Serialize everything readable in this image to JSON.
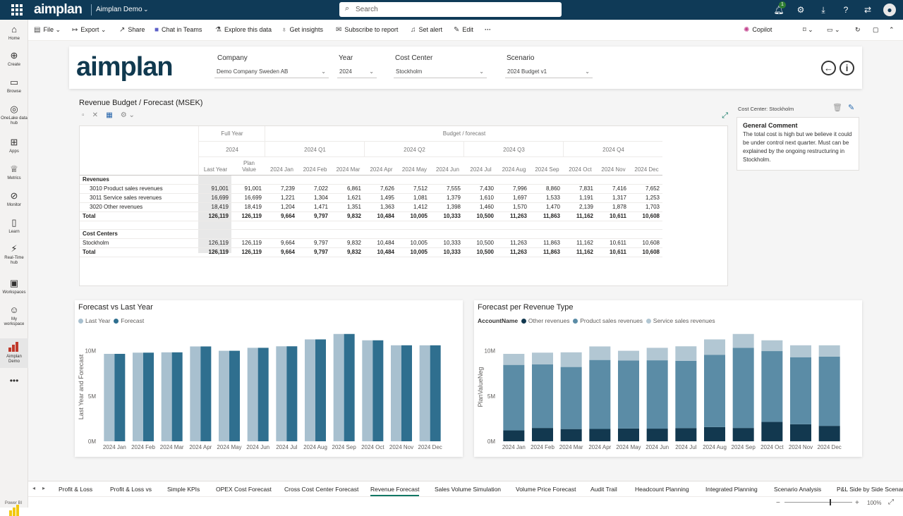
{
  "topbar": {
    "logo": "aimplan",
    "workspace": "Aimplan Demo",
    "search_placeholder": "Search",
    "notification_count": "1"
  },
  "leftnav": [
    {
      "label": "Home",
      "icon": "home-icon"
    },
    {
      "label": "Create",
      "icon": "plus-icon"
    },
    {
      "label": "Browse",
      "icon": "folder-icon"
    },
    {
      "label": "OneLake data hub",
      "icon": "onelake-icon"
    },
    {
      "label": "Apps",
      "icon": "apps-icon"
    },
    {
      "label": "Metrics",
      "icon": "trophy-icon"
    },
    {
      "label": "Monitor",
      "icon": "monitor-icon"
    },
    {
      "label": "Learn",
      "icon": "book-icon"
    },
    {
      "label": "Real-Time hub",
      "icon": "realtime-icon"
    },
    {
      "label": "Workspaces",
      "icon": "workspaces-icon"
    },
    {
      "label": "My workspace",
      "icon": "person-icon"
    },
    {
      "label": "Aimplan Demo",
      "icon": "aimplan-icon"
    }
  ],
  "actionbar": {
    "file": "File",
    "export": "Export",
    "share": "Share",
    "chat": "Chat in Teams",
    "explore": "Explore this data",
    "insights": "Get insights",
    "subscribe": "Subscribe to report",
    "alert": "Set alert",
    "edit": "Edit",
    "copilot": "Copilot"
  },
  "filters": {
    "company": {
      "label": "Company",
      "value": "Demo Company Sweden AB"
    },
    "year": {
      "label": "Year",
      "value": "2024"
    },
    "cost_center": {
      "label": "Cost Center",
      "value": "Stockholm"
    },
    "scenario": {
      "label": "Scenario",
      "value": "2024 Budget v1"
    }
  },
  "matrix": {
    "title": "Revenue Budget / Forecast (MSEK)",
    "group_full_year": "Full Year",
    "group_budget": "Budget / forecast",
    "year": "2024",
    "quarters": [
      "2024 Q1",
      "2024 Q2",
      "2024 Q3",
      "2024 Q4"
    ],
    "col_last_year": "Last Year",
    "col_plan_value": "Plan Value",
    "months": [
      "2024 Jan",
      "2024 Feb",
      "2024 Mar",
      "2024 Apr",
      "2024 May",
      "2024 Jun",
      "2024 Jul",
      "2024 Aug",
      "2024 Sep",
      "2024 Oct",
      "2024 Nov",
      "2024 Dec"
    ],
    "revenues_header": "Revenues",
    "cost_centers_header": "Cost Centers",
    "rows": [
      {
        "label": "3010 Product sales revenues",
        "values": [
          "91,001",
          "91,001",
          "7,239",
          "7,022",
          "6,861",
          "7,626",
          "7,512",
          "7,555",
          "7,430",
          "7,996",
          "8,860",
          "7,831",
          "7,416",
          "7,652"
        ]
      },
      {
        "label": "3011 Service sales revenues",
        "values": [
          "16,699",
          "16,699",
          "1,221",
          "1,304",
          "1,621",
          "1,495",
          "1,081",
          "1,379",
          "1,610",
          "1,697",
          "1,533",
          "1,191",
          "1,317",
          "1,253"
        ]
      },
      {
        "label": "3020 Other revenues",
        "values": [
          "18,419",
          "18,419",
          "1,204",
          "1,471",
          "1,351",
          "1,363",
          "1,412",
          "1,398",
          "1,460",
          "1,570",
          "1,470",
          "2,139",
          "1,878",
          "1,703"
        ]
      },
      {
        "label": "Total",
        "values": [
          "126,119",
          "126,119",
          "9,664",
          "9,797",
          "9,832",
          "10,484",
          "10,005",
          "10,333",
          "10,500",
          "11,263",
          "11,863",
          "11,162",
          "10,611",
          "10,608"
        ]
      }
    ],
    "cc_rows": [
      {
        "label": "Stockholm",
        "values": [
          "126,119",
          "126,119",
          "9,664",
          "9,797",
          "9,832",
          "10,484",
          "10,005",
          "10,333",
          "10,500",
          "11,263",
          "11,863",
          "11,162",
          "10,611",
          "10,608"
        ]
      },
      {
        "label": "Total",
        "values": [
          "126,119",
          "126,119",
          "9,664",
          "9,797",
          "9,832",
          "10,484",
          "10,005",
          "10,333",
          "10,500",
          "11,263",
          "11,863",
          "11,162",
          "10,611",
          "10,608"
        ]
      }
    ]
  },
  "comment": {
    "cost_center_label": "Cost Center:",
    "cost_center_value": "Stockholm",
    "title": "General Comment",
    "text": "The total cost is high but we believe it could be under control next quarter. Must can be explained by the ongoing restructuring in Stockholm."
  },
  "colors": {
    "last_year": "#a8c0cf",
    "forecast": "#2f6f8f",
    "other_revenues": "#12384f",
    "product_sales": "#5b8ca6",
    "service_sales": "#b2c7d3"
  },
  "chart_data": [
    {
      "type": "bar",
      "title": "Forecast vs Last Year",
      "ylabel": "Last Year and Forecast",
      "xlabel": "",
      "categories": [
        "2024 Jan",
        "2024 Feb",
        "2024 Mar",
        "2024 Apr",
        "2024 May",
        "2024 Jun",
        "2024 Jul",
        "2024 Aug",
        "2024 Sep",
        "2024 Oct",
        "2024 Nov",
        "2024 Dec"
      ],
      "ylim": [
        0,
        12000
      ],
      "y_ticks": [
        {
          "value": 0,
          "label": "0M"
        },
        {
          "value": 5000,
          "label": "5M"
        },
        {
          "value": 10000,
          "label": "10M"
        }
      ],
      "legend_position": "top-left",
      "series": [
        {
          "name": "Last Year",
          "values": [
            9664,
            9797,
            9832,
            10484,
            10005,
            10333,
            10500,
            11263,
            11863,
            11162,
            10611,
            10608
          ]
        },
        {
          "name": "Forecast",
          "values": [
            9664,
            9797,
            9832,
            10484,
            10005,
            10333,
            10500,
            11263,
            11863,
            11162,
            10611,
            10608
          ]
        }
      ]
    },
    {
      "type": "bar",
      "stacked": true,
      "title": "Forecast per Revenue Type",
      "ylabel": "PlanValueNeg",
      "xlabel": "",
      "legend_title": "AccountName",
      "legend_position": "top-left",
      "categories": [
        "2024 Jan",
        "2024 Feb",
        "2024 Mar",
        "2024 Apr",
        "2024 May",
        "2024 Jun",
        "2024 Jul",
        "2024 Aug",
        "2024 Sep",
        "2024 Oct",
        "2024 Nov",
        "2024 Dec"
      ],
      "ylim": [
        0,
        12000
      ],
      "y_ticks": [
        {
          "value": 0,
          "label": "0M"
        },
        {
          "value": 5000,
          "label": "5M"
        },
        {
          "value": 10000,
          "label": "10M"
        }
      ],
      "series": [
        {
          "name": "Other revenues",
          "values": [
            1204,
            1471,
            1351,
            1363,
            1412,
            1398,
            1460,
            1570,
            1470,
            2139,
            1878,
            1703
          ]
        },
        {
          "name": "Product sales revenues",
          "values": [
            7239,
            7022,
            6861,
            7626,
            7512,
            7555,
            7430,
            7996,
            8860,
            7831,
            7416,
            7652
          ]
        },
        {
          "name": "Service sales revenues",
          "values": [
            1221,
            1304,
            1621,
            1495,
            1081,
            1379,
            1610,
            1697,
            1533,
            1191,
            1317,
            1253
          ]
        }
      ]
    }
  ],
  "tabs": [
    "Profit & Loss",
    "Profit & Loss vs",
    "Simple KPIs",
    "OPEX Cost Forecast",
    "Cross Cost Center Forecast",
    "Revenue Forecast",
    "Sales Volume Simulation",
    "Volume Price Forecast",
    "Audit Trail",
    "Headcount Planning",
    "Integrated Planning",
    "Scenario Analysis",
    "P&L Side by Side Scenario"
  ],
  "active_tab": "Revenue Forecast",
  "status": {
    "zoom": "100%",
    "pbi_label": "Power BI"
  }
}
